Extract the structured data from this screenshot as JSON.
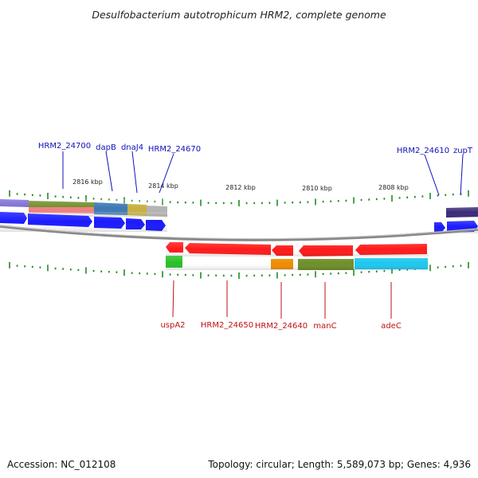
{
  "title": "Desulfobacterium autotrophicum HRM2, complete genome",
  "footer": {
    "accession": "Accession: NC_012108",
    "topology": "Topology: circular; Length: 5,589,073 bp; Genes: 4,936"
  },
  "colors": {
    "forward_cds": "#1a1aff",
    "reverse_cds": "#ff1a1a",
    "tick": "#228b22",
    "backbone": "#888888",
    "label_forward": "#1010b8",
    "label_reverse": "#c01010"
  },
  "scale_labels": [
    "2816 kbp",
    "2814 kbp",
    "2812 kbp",
    "2810 kbp",
    "2808 kbp"
  ],
  "top_labels": [
    "HRM2_24700",
    "dapB",
    "dnaJ4",
    "HRM2_24670",
    "HRM2_24610",
    "zupT"
  ],
  "bottom_labels": [
    "uspA2",
    "HRM2_24650",
    "HRM2_24640",
    "manC",
    "adeC"
  ]
}
